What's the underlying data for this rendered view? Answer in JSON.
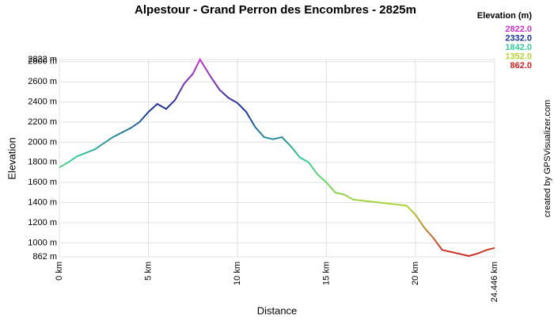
{
  "chart_data": {
    "type": "line",
    "title": "Alpestour - Grand Perron des Encombres - 2825m",
    "x_label": "Distance",
    "y_label": "Elevation",
    "credit": "created by GPSVisualizer.com",
    "xlim": [
      0,
      24.446
    ],
    "xticks": [
      {
        "value": 0,
        "label": "0 km"
      },
      {
        "value": 5,
        "label": "5 km"
      },
      {
        "value": 10,
        "label": "10 km"
      },
      {
        "value": 15,
        "label": "15 km"
      },
      {
        "value": 20,
        "label": "20 km"
      },
      {
        "value": 24.446,
        "label": "24.446 km"
      }
    ],
    "ylim": [
      862,
      2822
    ],
    "yticks": [
      {
        "value": 862,
        "label": "862 m"
      },
      {
        "value": 1000,
        "label": "1000 m"
      },
      {
        "value": 1200,
        "label": "1200 m"
      },
      {
        "value": 1400,
        "label": "1400 m"
      },
      {
        "value": 1600,
        "label": "1600 m"
      },
      {
        "value": 1800,
        "label": "1800 m"
      },
      {
        "value": 2000,
        "label": "2000 m"
      },
      {
        "value": 2200,
        "label": "2200 m"
      },
      {
        "value": 2400,
        "label": "2400 m"
      },
      {
        "value": 2600,
        "label": "2600 m"
      },
      {
        "value": 2800,
        "label": "2800 m"
      },
      {
        "value": 2822,
        "label": "2822 m"
      }
    ],
    "grid": true,
    "color_scale": {
      "title": "Elevation (m)",
      "stops": [
        {
          "value": 2822,
          "label": "2822.0",
          "color": "#cc33cc"
        },
        {
          "value": 2332,
          "label": "2332.0",
          "color": "#1a3399"
        },
        {
          "value": 1842,
          "label": "1842.0",
          "color": "#33cc99"
        },
        {
          "value": 1352,
          "label": "1352.0",
          "color": "#b3d433"
        },
        {
          "value": 862,
          "label": "862.0",
          "color": "#cc2222"
        }
      ]
    },
    "x": [
      0,
      0.5,
      1,
      2,
      3,
      4,
      4.5,
      5,
      5.5,
      6,
      6.5,
      7,
      7.5,
      7.9,
      8.5,
      9,
      9.5,
      10,
      10.5,
      11,
      11.5,
      12,
      12.5,
      13,
      13.5,
      14,
      14.5,
      15,
      15.5,
      16,
      16.5,
      17,
      18,
      19,
      19.5,
      20,
      20.5,
      21,
      21.5,
      22,
      22.5,
      23,
      23.5,
      24,
      24.446
    ],
    "values": [
      1750,
      1800,
      1860,
      1930,
      2050,
      2140,
      2200,
      2300,
      2380,
      2330,
      2420,
      2580,
      2680,
      2822,
      2650,
      2520,
      2440,
      2390,
      2300,
      2150,
      2050,
      2030,
      2050,
      1960,
      1850,
      1800,
      1680,
      1600,
      1500,
      1480,
      1430,
      1420,
      1400,
      1380,
      1370,
      1280,
      1150,
      1050,
      930,
      910,
      890,
      870,
      895,
      930,
      950
    ]
  }
}
